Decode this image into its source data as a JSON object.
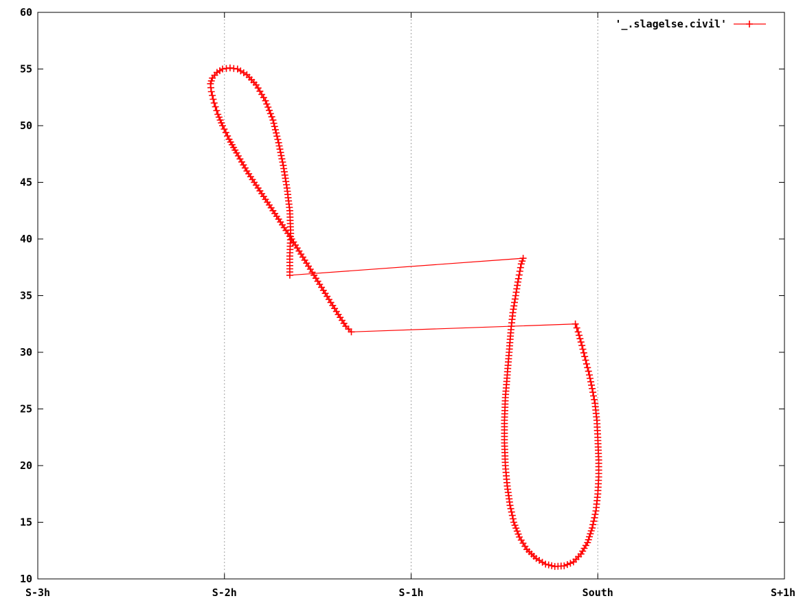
{
  "colors": {
    "series": "#ff0000",
    "grid": "#a0a0a0",
    "axis": "#000000"
  },
  "chart_data": {
    "type": "line",
    "title": "",
    "xlabel": "",
    "ylabel": "",
    "xlim": [
      -3,
      1
    ],
    "ylim": [
      10,
      60
    ],
    "x_unit": "hours relative to South",
    "x_ticks": [
      {
        "value": -3,
        "label": "S-3h"
      },
      {
        "value": -2,
        "label": "S-2h"
      },
      {
        "value": -1,
        "label": "S-1h"
      },
      {
        "value": 0,
        "label": "South"
      },
      {
        "value": 1,
        "label": "S+1h"
      }
    ],
    "y_ticks": [
      10,
      15,
      20,
      25,
      30,
      35,
      40,
      45,
      50,
      55,
      60
    ],
    "grid": {
      "x": true,
      "y": false,
      "style": "dotted"
    },
    "legend": {
      "position": "top-right",
      "entries": [
        "'_.slagelse.civil'"
      ]
    },
    "series": [
      {
        "name": "'_.slagelse.civil'",
        "marker": "plus",
        "points": [
          [
            -1.65,
            36.8
          ],
          [
            -1.65,
            38.5
          ],
          [
            -1.645,
            40.5
          ],
          [
            -1.65,
            42.5
          ],
          [
            -1.665,
            44.5
          ],
          [
            -1.685,
            46.5
          ],
          [
            -1.71,
            48.5
          ],
          [
            -1.74,
            50.5
          ],
          [
            -1.78,
            52.2
          ],
          [
            -1.83,
            53.6
          ],
          [
            -1.88,
            54.5
          ],
          [
            -1.93,
            55.0
          ],
          [
            -1.97,
            55.1
          ],
          [
            -2.01,
            55.0
          ],
          [
            -2.04,
            54.7
          ],
          [
            -2.065,
            54.2
          ],
          [
            -2.075,
            53.7
          ],
          [
            -2.07,
            53.0
          ],
          [
            -2.055,
            52.0
          ],
          [
            -2.035,
            51.0
          ],
          [
            -2.01,
            50.0
          ],
          [
            -1.975,
            48.8
          ],
          [
            -1.935,
            47.6
          ],
          [
            -1.88,
            46.0
          ],
          [
            -1.82,
            44.5
          ],
          [
            -1.76,
            43.0
          ],
          [
            -1.7,
            41.5
          ],
          [
            -1.64,
            40.0
          ],
          [
            -1.58,
            38.4
          ],
          [
            -1.52,
            36.8
          ],
          [
            -1.46,
            35.2
          ],
          [
            -1.4,
            33.6
          ],
          [
            -1.35,
            32.3
          ],
          [
            -1.32,
            31.8
          ],
          [
            -0.12,
            32.5
          ],
          [
            -0.105,
            31.8
          ],
          [
            -0.085,
            30.6
          ],
          [
            -0.065,
            29.3
          ],
          [
            -0.045,
            28.0
          ],
          [
            -0.03,
            26.8
          ],
          [
            -0.015,
            25.5
          ],
          [
            -0.005,
            24.0
          ],
          [
            0.0,
            22.5
          ],
          [
            0.005,
            20.5
          ],
          [
            0.005,
            19.0
          ],
          [
            0.0,
            17.5
          ],
          [
            -0.01,
            16.0
          ],
          [
            -0.03,
            14.5
          ],
          [
            -0.055,
            13.2
          ],
          [
            -0.09,
            12.2
          ],
          [
            -0.13,
            11.5
          ],
          [
            -0.18,
            11.15
          ],
          [
            -0.23,
            11.1
          ],
          [
            -0.28,
            11.3
          ],
          [
            -0.33,
            11.8
          ],
          [
            -0.38,
            12.6
          ],
          [
            -0.42,
            13.7
          ],
          [
            -0.45,
            15.0
          ],
          [
            -0.47,
            16.5
          ],
          [
            -0.485,
            18.2
          ],
          [
            -0.495,
            20.0
          ],
          [
            -0.5,
            22.0
          ],
          [
            -0.5,
            24.0
          ],
          [
            -0.495,
            26.0
          ],
          [
            -0.485,
            28.0
          ],
          [
            -0.475,
            30.0
          ],
          [
            -0.465,
            32.0
          ],
          [
            -0.455,
            33.5
          ],
          [
            -0.44,
            35.0
          ],
          [
            -0.425,
            36.5
          ],
          [
            -0.41,
            37.8
          ],
          [
            -0.4,
            38.3
          ],
          [
            -1.65,
            36.8
          ]
        ]
      }
    ]
  }
}
